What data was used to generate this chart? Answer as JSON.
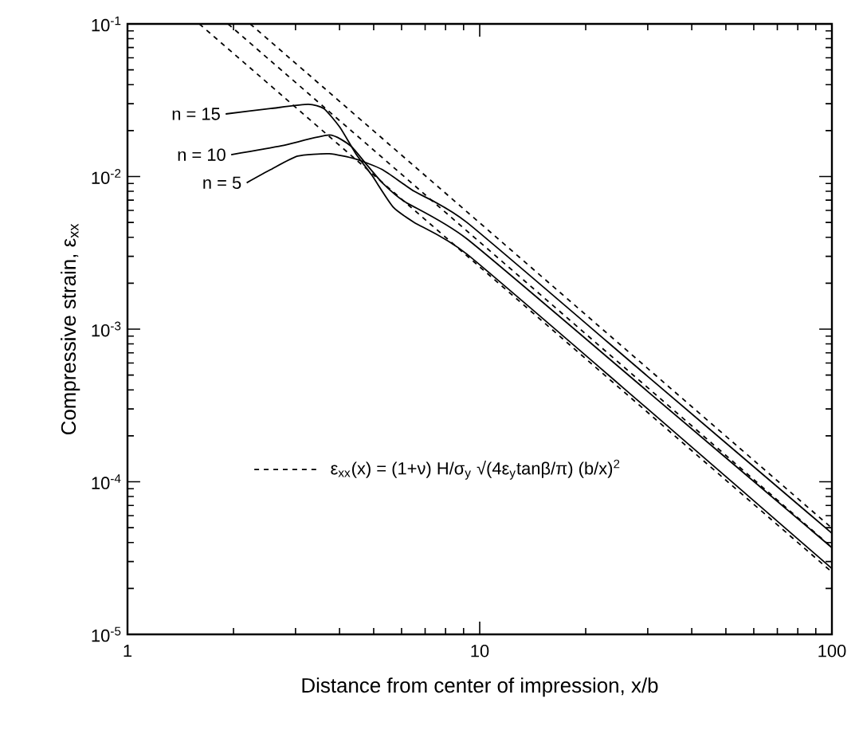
{
  "chart_data": {
    "type": "line",
    "xlabel": "Distance from center of impression, x/b",
    "ylabel": "Compressive strain, ε$_{xx}$",
    "log": "xy",
    "xlim": [
      1,
      100
    ],
    "ylim": [
      1e-05,
      0.1
    ],
    "xticks": [
      1,
      10,
      100
    ],
    "yticks": [
      {
        "value": 1e-05,
        "label": "10$^{-5}$"
      },
      {
        "value": 0.0001,
        "label": "10$^{-4}$"
      },
      {
        "value": 0.001,
        "label": "10$^{-3}$"
      },
      {
        "value": 0.01,
        "label": "10$^{-2}$"
      },
      {
        "value": 0.1,
        "label": "10$^{-1}$"
      }
    ],
    "legend": "bottom left",
    "marker": "none",
    "annotations": [
      {
        "text": "n = 15",
        "x": 1.9,
        "y": 0.0257
      },
      {
        "text": "n = 10",
        "x": 1.97,
        "y": 0.0139
      },
      {
        "text": "n = 5",
        "x": 2.18,
        "y": 0.0091
      }
    ],
    "series": [
      {
        "color": "#000000",
        "line_style": "solid",
        "x": [
          1.9,
          2.55,
          3.26,
          3.61,
          4.01,
          4.45,
          4.94,
          5.68,
          6.52,
          9.2,
          30,
          100
        ],
        "values": [
          0.0257,
          0.0279,
          0.0297,
          0.0279,
          0.021,
          0.0141,
          0.0102,
          0.0063,
          0.005,
          0.0031,
          0.0003,
          2.7e-05
        ]
      },
      {
        "color": "#000000",
        "line_style": "solid",
        "x": [
          1.97,
          2.74,
          3.74,
          4.3,
          4.77,
          5.29,
          6.09,
          9.2,
          30,
          100
        ],
        "values": [
          0.0139,
          0.0159,
          0.0187,
          0.0159,
          0.012,
          0.0091,
          0.0069,
          0.0039,
          0.00039,
          3.7e-05
        ]
      },
      {
        "color": "#000000",
        "line_style": "solid",
        "x": [
          2.18,
          2.55,
          3.04,
          3.74,
          4.45,
          5.29,
          6.52,
          9.2,
          30,
          100
        ],
        "values": [
          0.0091,
          0.0111,
          0.0136,
          0.0141,
          0.013,
          0.0111,
          0.008,
          0.005,
          0.00049,
          4.6e-05
        ]
      },
      {
        "name": "ε$_{xx}$(x) = (1+ν) H/σ$_{y}$ √(4ε$_{y}$tanβ/π) (b/x)$^{2}$",
        "color": "#000000",
        "line_style": "dashed",
        "x": [
          1.6,
          100
        ],
        "values": [
          0.1,
          2.56e-05
        ]
      },
      {
        "color": "#000000",
        "line_style": "dashed",
        "x": [
          1.93,
          100
        ],
        "values": [
          0.1,
          3.72e-05
        ]
      },
      {
        "color": "#000000",
        "line_style": "dashed",
        "x": [
          2.23,
          100
        ],
        "values": [
          0.1,
          4.97e-05
        ]
      }
    ]
  }
}
